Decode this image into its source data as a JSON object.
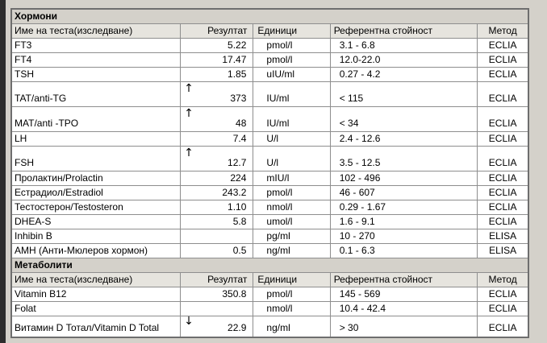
{
  "icons": {
    "high": "↑",
    "low": "↓"
  },
  "table": {
    "sections": [
      {
        "title": "Хормони",
        "columns": [
          "Име на теста(изследване)",
          "Резултат",
          "Единици",
          "Референтна стойност",
          "Метод"
        ],
        "rows": [
          {
            "name": "FT3",
            "flag": "",
            "result": "5.22",
            "units": "pmol/l",
            "reference": "3.1 - 6.8",
            "method": "ECLIA"
          },
          {
            "name": "FT4",
            "flag": "",
            "result": "17.47",
            "units": "pmol/l",
            "reference": "12.0-22.0",
            "method": "ECLIA"
          },
          {
            "name": "TSH",
            "flag": "",
            "result": "1.85",
            "units": "uIU/ml",
            "reference": "0.27 - 4.2",
            "method": "ECLIA"
          },
          {
            "name": "TAT/anti-TG",
            "flag": "high",
            "result": "373",
            "units": "IU/ml",
            "reference": "< 115",
            "method": "ECLIA"
          },
          {
            "name": "MAT/anti -TPO",
            "flag": "high",
            "result": "48",
            "units": "IU/ml",
            "reference": "< 34",
            "method": "ECLIA"
          },
          {
            "name": "LH",
            "flag": "",
            "result": "7.4",
            "units": "U/l",
            "reference": "2.4 - 12.6",
            "method": "ECLIA"
          },
          {
            "name": "FSH",
            "flag": "high",
            "result": "12.7",
            "units": "U/l",
            "reference": "3.5 - 12.5",
            "method": "ECLIA"
          },
          {
            "name": "Пролактин/Prolactin",
            "flag": "",
            "result": "224",
            "units": "mIU/l",
            "reference": "102 - 496",
            "method": "ECLIA"
          },
          {
            "name": "Естрадиол/Estradiol",
            "flag": "",
            "result": "243.2",
            "units": "pmol/l",
            "reference": "46 - 607",
            "method": "ECLIA"
          },
          {
            "name": "Тестостерон/Testosteron",
            "flag": "",
            "result": "1.10",
            "units": "nmol/l",
            "reference": "0.29 - 1.67",
            "method": "ECLIA"
          },
          {
            "name": "DHEA-S",
            "flag": "",
            "result": "5.8",
            "units": "umol/l",
            "reference": "1.6 - 9.1",
            "method": "ECLIA"
          },
          {
            "name": "Inhibin B",
            "flag": "",
            "result": "",
            "units": "pg/ml",
            "reference": "10 - 270",
            "method": "ELISA"
          },
          {
            "name": "АМН (Анти-Мюлеров хормон)",
            "flag": "",
            "result": "0.5",
            "units": "ng/ml",
            "reference": "0.1 - 6.3",
            "method": "ELISA"
          }
        ]
      },
      {
        "title": "Метаболити",
        "columns": [
          "Име на теста(изследване)",
          "Резултат",
          "Единици",
          "Референтна стойност",
          "Метод"
        ],
        "rows": [
          {
            "name": "Vitamin B12",
            "flag": "",
            "result": "350.8",
            "units": "pmol/l",
            "reference": "145 - 569",
            "method": "ECLIA"
          },
          {
            "name": "Folat",
            "flag": "",
            "result": "",
            "units": "nmol/l",
            "reference": "10.4 - 42.4",
            "method": "ECLIA"
          },
          {
            "name": "Витамин D Тотал/Vitamin D Total",
            "flag": "low",
            "result": "22.9",
            "units": "ng/ml",
            "reference": "> 30",
            "method": "ECLIA"
          }
        ]
      }
    ]
  }
}
